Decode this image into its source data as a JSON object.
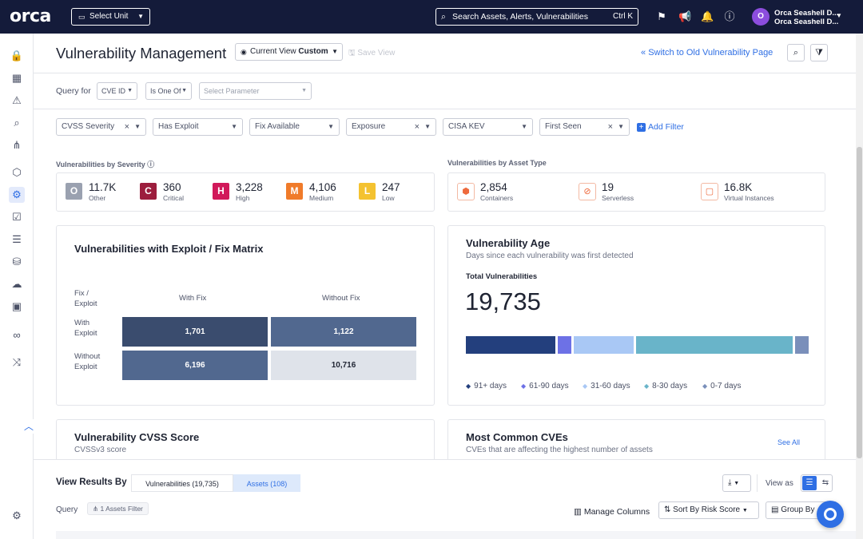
{
  "topbar": {
    "logo": "orca",
    "unit_selector": "Select Unit",
    "search_placeholder": "Search Assets, Alerts, Vulnerabilities",
    "search_shortcut": "Ctrl K",
    "avatar_initial": "O",
    "user_name": "Orca Seashell D...",
    "user_org": "Orca Seashell D..."
  },
  "header": {
    "title": "Vulnerability Management",
    "current_view_label": "Current View",
    "current_view_value": "Custom",
    "save_view": "Save View",
    "switch_link": "Switch to Old Vulnerability Page"
  },
  "query": {
    "label": "Query for",
    "field": "CVE ID",
    "operator": "Is One Of",
    "parameter_placeholder": "Select Parameter"
  },
  "filters": [
    {
      "label": "CVSS Severity"
    },
    {
      "label": "Has Exploit"
    },
    {
      "label": "Fix Available"
    },
    {
      "label": "Exposure"
    },
    {
      "label": "CISA KEV"
    },
    {
      "label": "First Seen"
    }
  ],
  "add_filter": "Add Filter",
  "severity": {
    "title": "Vulnerabilities by Severity",
    "items": [
      {
        "letter": "O",
        "count": "11.7K",
        "label": "Other",
        "color": "#9aa1b0"
      },
      {
        "letter": "C",
        "count": "360",
        "label": "Critical",
        "color": "#9c1d3d"
      },
      {
        "letter": "H",
        "count": "3,228",
        "label": "High",
        "color": "#d1195a"
      },
      {
        "letter": "M",
        "count": "4,106",
        "label": "Medium",
        "color": "#f07b2a"
      },
      {
        "letter": "L",
        "count": "247",
        "label": "Low",
        "color": "#f4c230"
      }
    ]
  },
  "asset_types": {
    "title": "Vulnerabilities by Asset Type",
    "items": [
      {
        "icon": "container-icon",
        "count": "2,854",
        "label": "Containers"
      },
      {
        "icon": "serverless-icon",
        "count": "19",
        "label": "Serverless"
      },
      {
        "icon": "vm-icon",
        "count": "16.8K",
        "label": "Virtual Instances"
      }
    ]
  },
  "matrix": {
    "title": "Vulnerabilities with Exploit / Fix Matrix",
    "corner_line1": "Fix /",
    "corner_line2": "Exploit",
    "col_with": "With Fix",
    "col_without": "Without Fix",
    "row_with_1": "With",
    "row_with_2": "Exploit",
    "row_without_1": "Without",
    "row_without_2": "Exploit",
    "cells": {
      "with_with": "1,701",
      "with_without": "1,122",
      "without_with": "6,196",
      "without_without": "10,716"
    }
  },
  "age": {
    "title": "Vulnerability Age",
    "subtitle": "Days since each vulnerability was first detected",
    "total_label": "Total Vulnerabilities",
    "total": "19,735",
    "segments": [
      {
        "label": "91+ days",
        "fraction": 0.27,
        "color": "#233f7d"
      },
      {
        "label": "61-90 days",
        "fraction": 0.04,
        "color": "#6d71e6"
      },
      {
        "label": "31-60 days",
        "fraction": 0.18,
        "color": "#a9c8f5"
      },
      {
        "label": "8-30 days",
        "fraction": 0.47,
        "color": "#69b4c9"
      },
      {
        "label": "0-7 days",
        "fraction": 0.04,
        "color": "#7a8fba"
      }
    ]
  },
  "cvss": {
    "title": "Vulnerability CVSS Score",
    "subtitle": "CVSSv3 score"
  },
  "common_cves": {
    "title": "Most Common CVEs",
    "subtitle": "CVEs that are affecting the highest number of assets",
    "see_all": "See All"
  },
  "results": {
    "label": "View Results By",
    "tab_vulns": "Vulnerabilities (19,735)",
    "tab_assets": "Assets (108)",
    "view_as": "View as",
    "query_label": "Query",
    "assets_filter": "1 Assets Filter",
    "manage_columns": "Manage Columns",
    "sort_by": "Sort By",
    "sort_value": "Risk Score",
    "group_by": "Group By"
  }
}
